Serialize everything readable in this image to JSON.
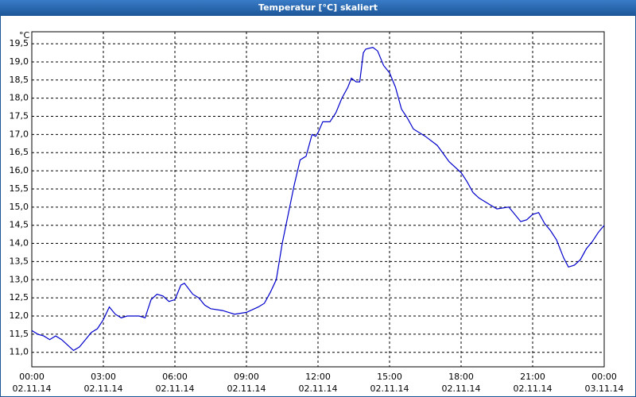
{
  "chart_data": {
    "type": "line",
    "title": "Temperatur [°C] skaliert",
    "y_unit": "°C",
    "color": "#0000cc",
    "grid": true,
    "xlim": [
      0,
      24
    ],
    "xticks": [
      {
        "value": 0,
        "label": "00:00"
      },
      {
        "value": 3,
        "label": "03:00"
      },
      {
        "value": 6,
        "label": "06:00"
      },
      {
        "value": 9,
        "label": "09:00"
      },
      {
        "value": 12,
        "label": "12:00"
      },
      {
        "value": 15,
        "label": "15:00"
      },
      {
        "value": 18,
        "label": "18:00"
      },
      {
        "value": 21,
        "label": "21:00"
      },
      {
        "value": 24,
        "label": "00:00"
      }
    ],
    "xtick_dates": [
      "02.11.14",
      "02.11.14",
      "02.11.14",
      "02.11.14",
      "02.11.14",
      "02.11.14",
      "02.11.14",
      "02.11.14",
      "03.11.14"
    ],
    "ylim": [
      10.6,
      19.83
    ],
    "yticks": [
      {
        "value": 11,
        "label": "11,0"
      },
      {
        "value": 11.5,
        "label": "11,5"
      },
      {
        "value": 12,
        "label": "12,0"
      },
      {
        "value": 12.5,
        "label": "12,5"
      },
      {
        "value": 13,
        "label": "13,0"
      },
      {
        "value": 13.5,
        "label": "13,5"
      },
      {
        "value": 14,
        "label": "14,0"
      },
      {
        "value": 14.5,
        "label": "14,5"
      },
      {
        "value": 15,
        "label": "15,0"
      },
      {
        "value": 15.5,
        "label": "15,5"
      },
      {
        "value": 16,
        "label": "16,0"
      },
      {
        "value": 16.5,
        "label": "16,5"
      },
      {
        "value": 17,
        "label": "17,0"
      },
      {
        "value": 17.5,
        "label": "17,5"
      },
      {
        "value": 18,
        "label": "18,0"
      },
      {
        "value": 18.5,
        "label": "18,5"
      },
      {
        "value": 19,
        "label": "19,0"
      },
      {
        "value": 19.5,
        "label": "19,5"
      }
    ],
    "x": [
      0,
      0.25,
      0.5,
      0.75,
      1,
      1.25,
      1.5,
      1.75,
      2,
      2.25,
      2.5,
      2.75,
      3,
      3.25,
      3.5,
      3.75,
      4,
      4.5,
      4.75,
      5,
      5.25,
      5.5,
      5.75,
      6,
      6.25,
      6.4,
      6.75,
      7,
      7.25,
      7.5,
      8,
      8.25,
      8.5,
      9,
      9.5,
      9.75,
      10,
      10.25,
      10.5,
      10.75,
      11,
      11.25,
      11.5,
      11.75,
      11.9,
      12,
      12.2,
      12.5,
      12.75,
      13,
      13.25,
      13.4,
      13.6,
      13.75,
      13.9,
      14,
      14.3,
      14.5,
      14.75,
      15,
      15.25,
      15.5,
      15.75,
      16,
      16.5,
      17,
      17.5,
      18,
      18.25,
      18.5,
      18.75,
      19,
      19.5,
      20,
      20.5,
      20.75,
      21,
      21.25,
      21.5,
      21.75,
      22,
      22.3,
      22.5,
      22.75,
      23,
      23.25,
      23.5,
      23.75,
      24
    ],
    "values": [
      11.6,
      11.5,
      11.45,
      11.35,
      11.45,
      11.35,
      11.2,
      11.05,
      11.15,
      11.35,
      11.55,
      11.65,
      11.9,
      12.25,
      12.05,
      11.95,
      12.0,
      12.0,
      11.95,
      12.45,
      12.6,
      12.55,
      12.4,
      12.45,
      12.85,
      12.9,
      12.6,
      12.5,
      12.3,
      12.2,
      12.15,
      12.1,
      12.05,
      12.1,
      12.25,
      12.35,
      12.65,
      13.0,
      14.0,
      14.8,
      15.6,
      16.3,
      16.4,
      17.0,
      16.95,
      17.05,
      17.35,
      17.35,
      17.6,
      18.0,
      18.3,
      18.55,
      18.45,
      18.45,
      19.25,
      19.35,
      19.4,
      19.3,
      18.9,
      18.7,
      18.3,
      17.7,
      17.45,
      17.15,
      16.95,
      16.7,
      16.25,
      15.95,
      15.7,
      15.4,
      15.25,
      15.15,
      14.95,
      15.0,
      14.6,
      14.65,
      14.8,
      14.85,
      14.55,
      14.35,
      14.1,
      13.6,
      13.35,
      13.4,
      13.55,
      13.85,
      14.05,
      14.3,
      14.5
    ]
  }
}
